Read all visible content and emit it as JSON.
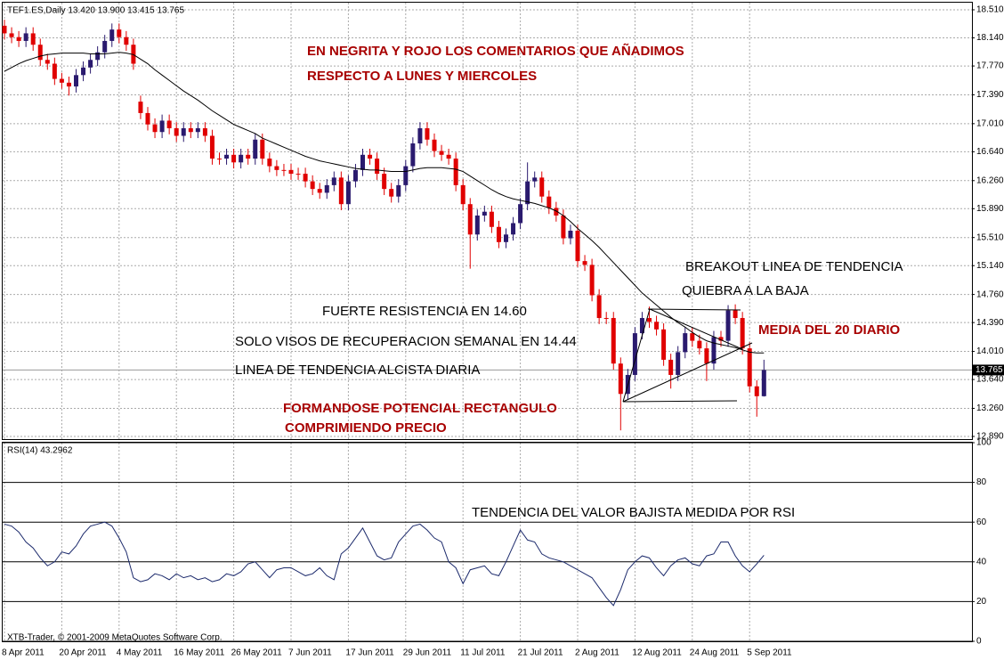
{
  "chart_data": [
    {
      "type": "candlestick",
      "title": "TEF1.ES,Daily  13.420 13.900 13.415 13.765",
      "categories": [
        "8 Apr 2011",
        null,
        null,
        null,
        null,
        null,
        null,
        null,
        "20 Apr 2011",
        null,
        null,
        null,
        null,
        null,
        null,
        null,
        "4 May 2011",
        null,
        null,
        null,
        null,
        null,
        null,
        null,
        "16 May 2011",
        null,
        null,
        null,
        null,
        null,
        null,
        null,
        "26 May 2011",
        null,
        null,
        null,
        null,
        null,
        null,
        null,
        "7 Jun 2011",
        null,
        null,
        null,
        null,
        null,
        null,
        null,
        "17 Jun 2011",
        null,
        null,
        null,
        null,
        null,
        null,
        null,
        "29 Jun 2011",
        null,
        null,
        null,
        null,
        null,
        null,
        null,
        "11 Jul 2011",
        null,
        null,
        null,
        null,
        null,
        null,
        null,
        "21 Jul 2011",
        null,
        null,
        null,
        null,
        null,
        null,
        null,
        "2 Aug 2011",
        null,
        null,
        null,
        null,
        null,
        null,
        null,
        "12 Aug 2011",
        null,
        null,
        null,
        null,
        null,
        null,
        null,
        "24 Aug 2011",
        null,
        null,
        null,
        null,
        null,
        null,
        null,
        "5 Sep 2011",
        null,
        null
      ],
      "open": [
        18.3,
        18.2,
        18.15,
        18.1,
        18.2,
        18.05,
        17.85,
        17.8,
        17.6,
        17.55,
        17.5,
        17.65,
        17.75,
        17.85,
        17.95,
        18.1,
        18.25,
        18.15,
        18.05,
        17.3,
        17.15,
        17.0,
        16.9,
        17.05,
        16.95,
        16.85,
        16.95,
        16.9,
        16.95,
        16.85,
        16.55,
        16.55,
        16.6,
        16.5,
        16.6,
        16.55,
        16.8,
        16.55,
        16.45,
        16.4,
        16.4,
        16.35,
        16.35,
        16.25,
        16.15,
        16.1,
        16.2,
        16.3,
        15.95,
        16.25,
        16.4,
        16.6,
        16.55,
        16.35,
        16.15,
        16.05,
        16.2,
        16.45,
        16.75,
        16.95,
        16.8,
        16.65,
        16.6,
        16.55,
        16.2,
        15.95,
        15.55,
        15.8,
        15.85,
        15.65,
        15.45,
        15.55,
        15.7,
        15.95,
        16.25,
        16.3,
        16.05,
        15.9,
        15.8,
        15.5,
        15.6,
        15.2,
        15.15,
        14.75,
        14.45,
        14.45,
        13.85,
        13.45,
        13.7,
        14.25,
        14.45,
        14.4,
        14.3,
        13.9,
        13.7,
        14.0,
        14.25,
        14.15,
        14.05,
        13.85,
        14.2,
        14.15,
        14.55,
        14.45,
        14.05,
        13.55,
        13.42
      ],
      "high": [
        18.38,
        18.28,
        18.23,
        18.28,
        18.28,
        18.13,
        17.93,
        17.88,
        17.68,
        17.63,
        17.73,
        17.83,
        17.93,
        18.03,
        18.18,
        18.33,
        18.33,
        18.23,
        18.13,
        17.38,
        17.23,
        17.08,
        17.13,
        17.13,
        17.03,
        17.03,
        17.03,
        17.03,
        17.03,
        16.93,
        16.63,
        16.68,
        16.68,
        16.68,
        16.68,
        16.88,
        16.88,
        16.63,
        16.53,
        16.48,
        16.48,
        16.43,
        16.43,
        16.33,
        16.23,
        16.28,
        16.38,
        16.38,
        16.33,
        16.48,
        16.68,
        16.68,
        16.63,
        16.43,
        16.23,
        16.28,
        16.53,
        16.83,
        17.03,
        17.03,
        16.88,
        16.73,
        16.68,
        16.63,
        16.28,
        16.03,
        15.88,
        15.93,
        15.93,
        15.73,
        15.63,
        15.78,
        16.03,
        16.5,
        16.38,
        16.38,
        16.13,
        15.98,
        15.88,
        15.68,
        15.68,
        15.28,
        15.23,
        14.83,
        14.53,
        14.53,
        13.93,
        13.78,
        14.33,
        14.53,
        14.6,
        14.48,
        14.38,
        13.98,
        14.08,
        14.33,
        14.33,
        14.23,
        14.13,
        14.28,
        14.28,
        14.62,
        14.63,
        14.53,
        14.13,
        13.63,
        13.9
      ],
      "low": [
        18.12,
        18.07,
        18.02,
        18.02,
        17.97,
        17.77,
        17.72,
        17.52,
        17.47,
        17.38,
        17.42,
        17.57,
        17.67,
        17.77,
        17.87,
        18.02,
        18.07,
        17.97,
        17.72,
        17.07,
        16.92,
        16.82,
        16.82,
        16.87,
        16.77,
        16.77,
        16.82,
        16.82,
        16.77,
        16.47,
        16.47,
        16.47,
        16.42,
        16.42,
        16.47,
        16.47,
        16.47,
        16.37,
        16.32,
        16.32,
        16.27,
        16.27,
        16.17,
        16.07,
        16.02,
        16.02,
        16.12,
        15.87,
        15.87,
        16.17,
        16.32,
        16.47,
        16.27,
        16.07,
        15.97,
        15.97,
        16.12,
        16.37,
        16.67,
        16.72,
        16.57,
        16.52,
        16.47,
        16.12,
        15.87,
        15.1,
        15.47,
        15.72,
        15.57,
        15.37,
        15.37,
        15.47,
        15.62,
        15.87,
        16.17,
        15.97,
        15.82,
        15.72,
        15.42,
        15.42,
        15.12,
        15.07,
        14.67,
        14.37,
        14.37,
        13.77,
        12.97,
        13.37,
        13.62,
        14.17,
        14.32,
        14.22,
        13.82,
        13.52,
        13.62,
        13.92,
        14.07,
        13.97,
        13.62,
        13.77,
        14.07,
        14.07,
        14.37,
        13.97,
        13.47,
        13.15,
        13.415
      ],
      "close": [
        18.2,
        18.15,
        18.1,
        18.2,
        18.05,
        17.85,
        17.8,
        17.6,
        17.55,
        17.5,
        17.65,
        17.75,
        17.85,
        17.95,
        18.1,
        18.25,
        18.15,
        18.05,
        17.8,
        17.15,
        17.0,
        16.9,
        17.05,
        16.95,
        16.85,
        16.95,
        16.9,
        16.95,
        16.85,
        16.55,
        16.55,
        16.6,
        16.5,
        16.6,
        16.55,
        16.8,
        16.55,
        16.45,
        16.4,
        16.4,
        16.35,
        16.35,
        16.25,
        16.15,
        16.1,
        16.2,
        16.3,
        15.95,
        16.25,
        16.4,
        16.6,
        16.55,
        16.35,
        16.15,
        16.05,
        16.2,
        16.45,
        16.75,
        16.95,
        16.8,
        16.65,
        16.6,
        16.55,
        16.2,
        15.95,
        15.55,
        15.8,
        15.85,
        15.65,
        15.45,
        15.55,
        15.7,
        15.95,
        16.25,
        16.3,
        16.05,
        15.9,
        15.8,
        15.5,
        15.6,
        15.2,
        15.15,
        14.75,
        14.45,
        14.45,
        13.85,
        13.45,
        13.7,
        14.25,
        14.45,
        14.4,
        14.3,
        13.9,
        13.7,
        14.0,
        14.25,
        14.15,
        14.05,
        13.85,
        14.2,
        14.15,
        14.55,
        14.45,
        14.05,
        13.55,
        13.42,
        13.765
      ],
      "up_color": "#2a1a6e",
      "down_color": "#e00000",
      "moving_average": {
        "color": "#000000",
        "values": [
          17.7,
          17.75,
          17.8,
          17.84,
          17.87,
          17.9,
          17.92,
          17.93,
          17.94,
          17.94,
          17.94,
          17.94,
          17.93,
          17.93,
          17.93,
          17.94,
          17.95,
          17.94,
          17.92,
          17.86,
          17.8,
          17.72,
          17.65,
          17.58,
          17.51,
          17.44,
          17.38,
          17.32,
          17.25,
          17.18,
          17.12,
          17.06,
          17.0,
          16.96,
          16.92,
          16.88,
          16.82,
          16.78,
          16.74,
          16.7,
          16.66,
          16.62,
          16.58,
          16.55,
          16.52,
          16.5,
          16.48,
          16.46,
          16.44,
          16.42,
          16.41,
          16.4,
          16.4,
          16.39,
          16.38,
          16.38,
          16.38,
          16.4,
          16.42,
          16.43,
          16.43,
          16.43,
          16.42,
          16.41,
          16.38,
          16.32,
          16.26,
          16.2,
          16.14,
          16.09,
          16.05,
          16.02,
          16.0,
          15.98,
          15.96,
          15.93,
          15.9,
          15.86,
          15.8,
          15.72,
          15.63,
          15.55,
          15.47,
          15.38,
          15.28,
          15.18,
          15.08,
          14.98,
          14.88,
          14.78,
          14.7,
          14.62,
          14.54,
          14.46,
          14.39,
          14.33,
          14.26,
          14.2,
          14.15,
          14.12,
          14.1,
          14.08,
          14.06,
          14.03,
          14.0,
          13.99,
          13.99
        ]
      },
      "current_price": 13.765,
      "ylim": [
        12.843,
        18.604
      ],
      "yticks": [
        {
          "value": 18.51,
          "label": "18.510"
        },
        {
          "value": 18.14,
          "label": "18.140"
        },
        {
          "value": 17.77,
          "label": "17.770"
        },
        {
          "value": 17.39,
          "label": "17.390"
        },
        {
          "value": 17.01,
          "label": "17.010"
        },
        {
          "value": 16.64,
          "label": "16.640"
        },
        {
          "value": 16.26,
          "label": "16.260"
        },
        {
          "value": 15.89,
          "label": "15.890"
        },
        {
          "value": 15.51,
          "label": "15.510"
        },
        {
          "value": 15.14,
          "label": "15.140"
        },
        {
          "value": 14.76,
          "label": "14.760"
        },
        {
          "value": 14.39,
          "label": "14.390"
        },
        {
          "value": 14.01,
          "label": "14.010"
        },
        {
          "value": 13.64,
          "label": "13.640"
        },
        {
          "value": 13.26,
          "label": "13.260"
        },
        {
          "value": 12.89,
          "label": "12.890"
        }
      ],
      "grid": true,
      "annotations": [
        "EN NEGRITA Y ROJO LOS COMENTARIOS QUE AÑADIMOS",
        "RESPECTO A LUNES Y MIERCOLES",
        "BREAKOUT LINEA DE TENDENCIA",
        "QUIEBRA A LA BAJA",
        "FUERTE RESISTENCIA EN 14.60",
        "MEDIA DEL 20 DIARIO",
        "SOLO VISOS DE RECUPERACION SEMANAL EN 14.44",
        "LINEA DE TENDENCIA ALCISTA DIARIA",
        "FORMANDOSE POTENCIAL RECTANGULO",
        "COMPRIMIENDO PRECIO"
      ]
    },
    {
      "type": "line",
      "title": "RSI(14) 43.2962",
      "color": "#1c2a6c",
      "values": [
        59,
        58,
        55,
        50,
        47,
        42,
        38,
        40,
        45,
        44,
        48,
        54,
        58,
        59,
        60,
        58,
        52,
        45,
        32,
        30,
        31,
        34,
        33,
        31,
        34,
        32,
        33,
        31,
        32,
        30,
        31,
        34,
        33,
        35,
        39,
        40,
        36,
        32,
        36,
        37,
        37,
        35,
        33,
        34,
        37,
        33,
        31,
        44,
        47,
        52,
        57,
        50,
        43,
        41,
        42,
        50,
        54,
        58,
        59,
        56,
        52,
        50,
        40,
        37,
        29,
        36,
        37,
        38,
        34,
        33,
        40,
        48,
        56,
        51,
        50,
        44,
        42,
        41,
        40,
        38,
        36,
        34,
        32,
        27,
        22,
        18,
        26,
        36,
        40,
        43,
        42,
        37,
        33,
        38,
        41,
        42,
        39,
        38,
        43,
        44,
        50,
        50,
        43,
        38,
        35,
        39,
        43.2962
      ],
      "ylim": [
        0,
        100
      ],
      "yticks": [
        100,
        80,
        60,
        40,
        20,
        0
      ],
      "annotations": [
        "TENDENCIA DEL VALOR BAJISTA MEDIDA POR RSI"
      ]
    }
  ],
  "footer": "XTB-Trader, © 2001-2009 MetaQuotes Software Corp."
}
